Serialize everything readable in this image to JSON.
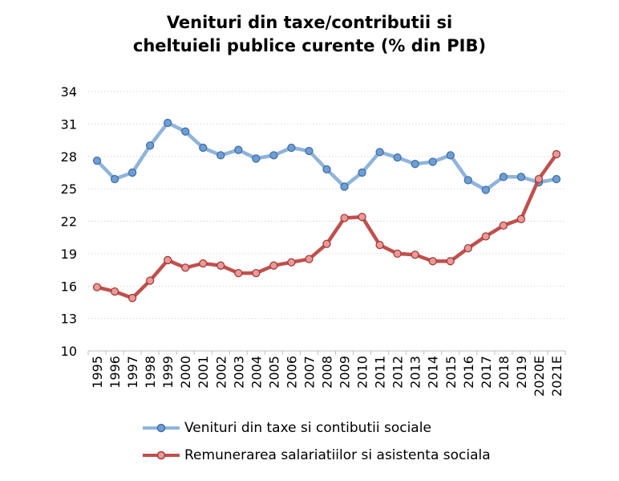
{
  "chart_data": {
    "type": "line",
    "title_lines": [
      "Venituri din taxe/contributii si",
      "cheltuieli publice curente (% din PIB)"
    ],
    "categories": [
      "1995",
      "1996",
      "1997",
      "1998",
      "1999",
      "2000",
      "2001",
      "2002",
      "2003",
      "2004",
      "2005",
      "2006",
      "2007",
      "2008",
      "2009",
      "2010",
      "2011",
      "2012",
      "2013",
      "2014",
      "2015",
      "2016",
      "2017",
      "2018",
      "2019",
      "2020E",
      "2021E"
    ],
    "ylim": [
      10,
      34
    ],
    "yticks": [
      "10",
      "13",
      "16",
      "19",
      "22",
      "25",
      "28",
      "31",
      "34"
    ],
    "grid": true,
    "legend_position": "bottom",
    "series": [
      {
        "name": "Venituri din taxe si contibutii sociale",
        "color": "#8fb4dc",
        "marker_fill": "#6f9ed3",
        "values": [
          27.6,
          25.9,
          26.5,
          29.0,
          31.1,
          30.3,
          28.8,
          28.1,
          28.6,
          27.8,
          28.1,
          28.8,
          28.5,
          26.8,
          25.2,
          26.5,
          28.4,
          27.9,
          27.3,
          27.5,
          28.1,
          25.8,
          24.9,
          26.1,
          26.1,
          25.6,
          25.9
        ]
      },
      {
        "name": "Remunerarea salariatiilor si asistenta sociala",
        "color": "#c0504d",
        "marker_fill": "#e99a98",
        "values": [
          15.9,
          15.5,
          14.9,
          16.5,
          18.4,
          17.7,
          18.1,
          17.9,
          17.2,
          17.2,
          17.9,
          18.2,
          18.5,
          19.9,
          22.3,
          22.4,
          19.8,
          19.0,
          18.9,
          18.3,
          18.3,
          19.5,
          20.6,
          21.6,
          22.2,
          25.9,
          28.2
        ]
      }
    ]
  }
}
